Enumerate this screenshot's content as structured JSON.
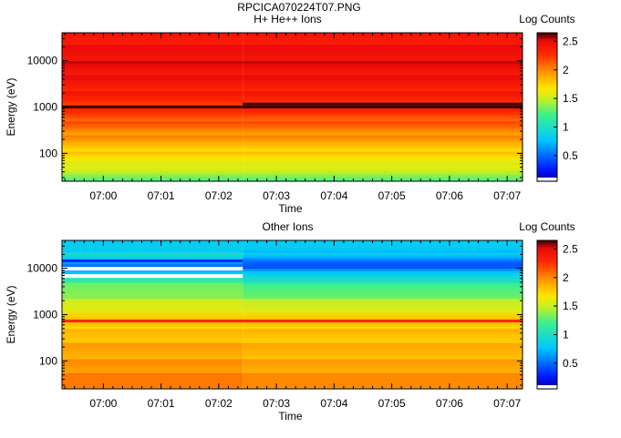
{
  "figure": {
    "title": "RPCICA070224T07.PNG"
  },
  "chart_data": [
    {
      "type": "heatmap",
      "title": "H+ He++ Ions",
      "xlabel": "Time",
      "ylabel": "Energy (eV)",
      "yscale": "log",
      "ylim": [
        25,
        40000
      ],
      "x_ticks": [
        "07:00",
        "07:01",
        "07:02",
        "07:03",
        "07:04",
        "07:05",
        "07:06",
        "07:07"
      ],
      "x_range": [
        "06:59:17",
        "07:07:16"
      ],
      "y_ticks": [
        100,
        1000,
        10000
      ],
      "colorbar": {
        "label": "Log Counts",
        "range": [
          0.05,
          2.65
        ],
        "ticks": [
          0.5,
          1,
          1.5,
          2,
          2.5
        ]
      },
      "segment_boundary_time": "07:02:25",
      "profile_energy_ev": [
        30,
        50,
        100,
        200,
        400,
        700,
        1000,
        1300,
        2000,
        5000,
        10000,
        20000,
        40000
      ],
      "profile_log_counts_before": [
        1.35,
        1.55,
        1.75,
        1.92,
        2.1,
        2.25,
        2.3,
        2.3,
        2.38,
        2.45,
        2.5,
        2.45,
        2.4
      ],
      "profile_log_counts_after": [
        1.35,
        1.55,
        1.75,
        1.92,
        2.1,
        2.25,
        2.35,
        2.3,
        2.38,
        2.45,
        2.5,
        2.45,
        2.4
      ],
      "highlight_lines": [
        {
          "energy_ev": 1000,
          "log_counts": 2.65,
          "applies": "both"
        },
        {
          "energy_ev": 1160,
          "log_counts": 2.65,
          "applies": "after"
        }
      ],
      "empty_channels": []
    },
    {
      "type": "heatmap",
      "title": "Other Ions",
      "xlabel": "Time",
      "ylabel": "Energy (eV)",
      "yscale": "log",
      "ylim": [
        25,
        40000
      ],
      "x_ticks": [
        "07:00",
        "07:01",
        "07:02",
        "07:03",
        "07:04",
        "07:05",
        "07:06",
        "07:07"
      ],
      "x_range": [
        "06:59:17",
        "07:07:16"
      ],
      "y_ticks": [
        100,
        1000,
        10000
      ],
      "colorbar": {
        "label": "Log Counts",
        "range": [
          0.05,
          2.65
        ],
        "ticks": [
          0.5,
          1,
          1.5,
          2,
          2.5
        ]
      },
      "segment_boundary_time": "07:02:25",
      "profile_energy_ev": [
        30,
        50,
        100,
        200,
        400,
        700,
        1000,
        2000,
        4000,
        6000,
        8000,
        10000,
        14000,
        20000,
        30000,
        40000
      ],
      "profile_log_counts_before": [
        2.1,
        2.0,
        1.95,
        1.9,
        1.8,
        1.85,
        1.7,
        1.5,
        1.3,
        1.15,
        0.8,
        0.5,
        0.7,
        0.9,
        0.85,
        0.75
      ],
      "profile_log_counts_after": [
        2.05,
        1.95,
        1.9,
        1.85,
        1.8,
        1.85,
        1.7,
        1.45,
        1.2,
        1.0,
        0.8,
        0.5,
        0.5,
        0.75,
        0.85,
        0.75
      ],
      "highlight_lines": [
        {
          "energy_ev": 730,
          "log_counts": 2.3,
          "applies": "both"
        },
        {
          "energy_ev": 14500,
          "log_counts": 0.3,
          "applies": "before"
        }
      ],
      "empty_channels": [
        {
          "energy_ev": 6800,
          "applies": "before"
        },
        {
          "energy_ev": 9800,
          "applies": "before"
        }
      ]
    }
  ]
}
